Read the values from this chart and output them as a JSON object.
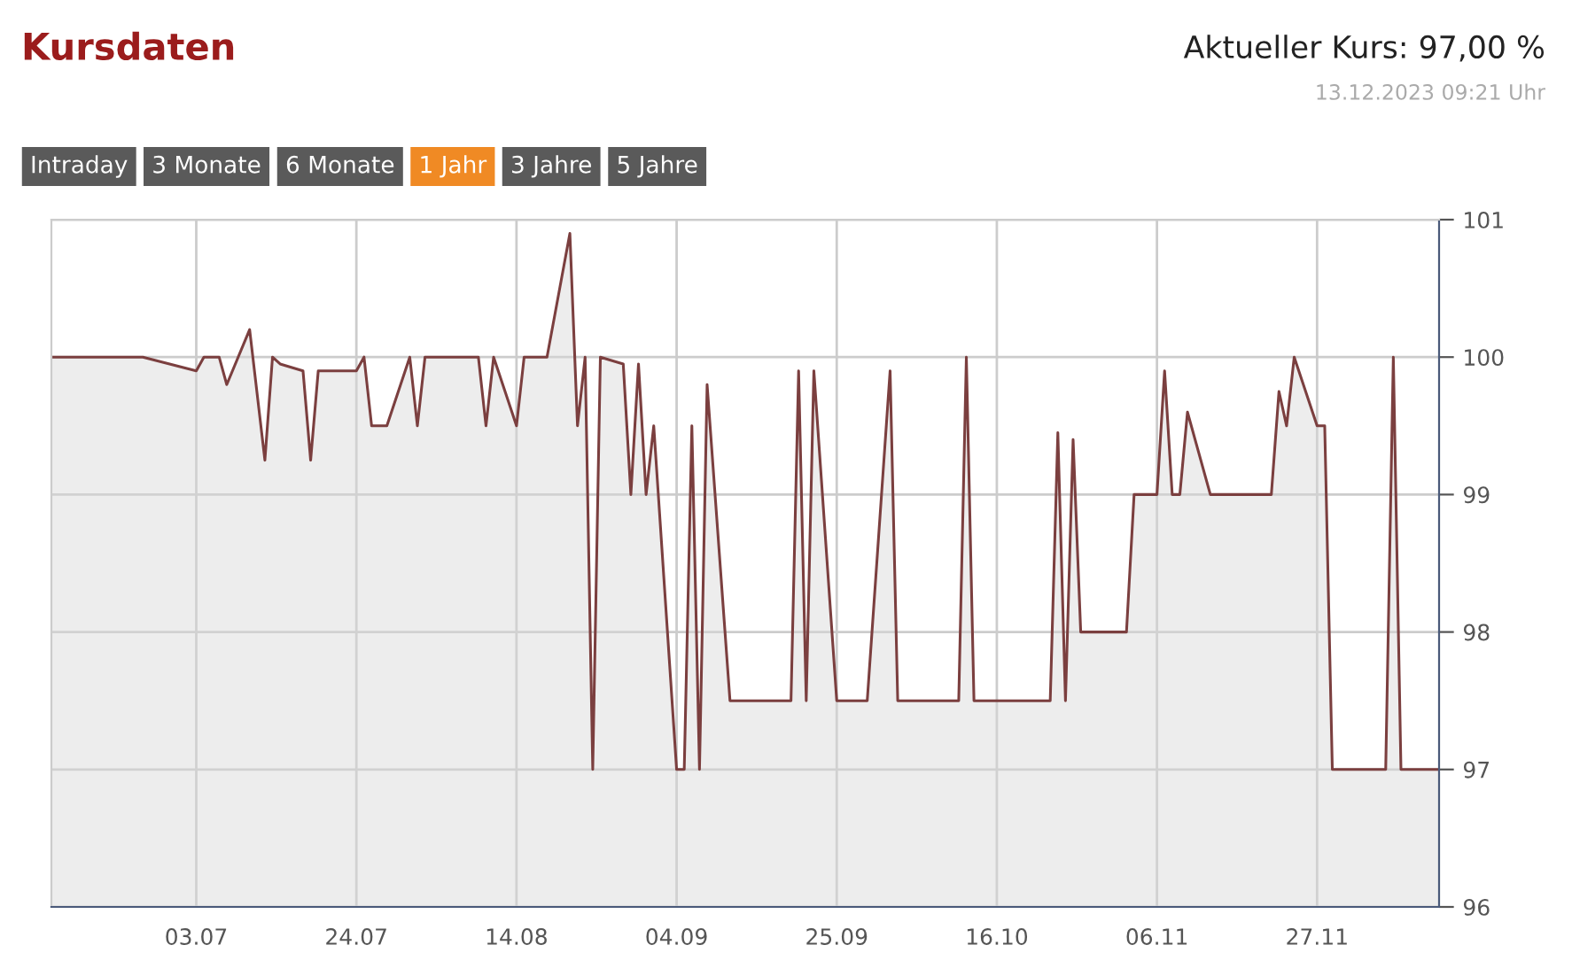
{
  "chart_data": {
    "type": "area",
    "title": "Kursdaten",
    "annotations": [
      "Aktueller Kurs: 97,00 %",
      "13.12.2023 09:21 Uhr",
      "Intraday",
      "3 Monate",
      "6 Monate",
      "1 Jahr",
      "3 Jahre",
      "5 Jahre"
    ],
    "x": [
      "2023-06-14",
      "2023-06-26",
      "2023-07-03",
      "2023-07-04",
      "2023-07-06",
      "2023-07-07",
      "2023-07-10",
      "2023-07-12",
      "2023-07-13",
      "2023-07-14",
      "2023-07-17",
      "2023-07-18",
      "2023-07-19",
      "2023-07-24",
      "2023-07-25",
      "2023-07-26",
      "2023-07-28",
      "2023-07-31",
      "2023-08-01",
      "2023-08-02",
      "2023-08-09",
      "2023-08-10",
      "2023-08-11",
      "2023-08-14",
      "2023-08-15",
      "2023-08-18",
      "2023-08-21",
      "2023-08-22",
      "2023-08-23",
      "2023-08-24",
      "2023-08-25",
      "2023-08-28",
      "2023-08-29",
      "2023-08-30",
      "2023-08-31",
      "2023-09-01",
      "2023-09-04",
      "2023-09-05",
      "2023-09-06",
      "2023-09-07",
      "2023-09-08",
      "2023-09-11",
      "2023-09-19",
      "2023-09-20",
      "2023-09-21",
      "2023-09-22",
      "2023-09-25",
      "2023-09-29",
      "2023-10-02",
      "2023-10-03",
      "2023-10-11",
      "2023-10-12",
      "2023-10-13",
      "2023-10-23",
      "2023-10-24",
      "2023-10-25",
      "2023-10-26",
      "2023-10-27",
      "2023-11-02",
      "2023-11-03",
      "2023-11-06",
      "2023-11-07",
      "2023-11-08",
      "2023-11-09",
      "2023-11-10",
      "2023-11-13",
      "2023-11-21",
      "2023-11-22",
      "2023-11-23",
      "2023-11-24",
      "2023-11-27",
      "2023-11-28",
      "2023-11-29",
      "2023-12-06",
      "2023-12-07",
      "2023-12-08",
      "2023-12-13"
    ],
    "series": [
      {
        "color": "#7b3f3f",
        "values": [
          100,
          100,
          99.9,
          100,
          100,
          99.8,
          100.2,
          99.25,
          100,
          99.95,
          99.9,
          99.25,
          99.9,
          99.9,
          100,
          99.5,
          99.5,
          100,
          99.5,
          100,
          100,
          99.5,
          100,
          99.5,
          100,
          100,
          100.9,
          99.5,
          100,
          97,
          100,
          99.95,
          99,
          99.95,
          99,
          99.5,
          97,
          97,
          99.5,
          97,
          99.8,
          97.5,
          97.5,
          99.9,
          97.5,
          99.9,
          97.5,
          97.5,
          99.9,
          97.5,
          97.5,
          100,
          97.5,
          97.5,
          99.45,
          97.5,
          99.4,
          98,
          98,
          99,
          99,
          99.9,
          99,
          99,
          99.6,
          99,
          99,
          99.75,
          99.5,
          100,
          99.5,
          99.5,
          97,
          97,
          100,
          97,
          97
        ]
      }
    ],
    "xlim": [
      "2023-06-14",
      "2023-12-13"
    ],
    "xticks": [
      {
        "value": "2023-07-03",
        "label": "03.07"
      },
      {
        "value": "2023-07-24",
        "label": "24.07"
      },
      {
        "value": "2023-08-14",
        "label": "14.08"
      },
      {
        "value": "2023-09-04",
        "label": "04.09"
      },
      {
        "value": "2023-09-25",
        "label": "25.09"
      },
      {
        "value": "2023-10-16",
        "label": "16.10"
      },
      {
        "value": "2023-11-06",
        "label": "06.11"
      },
      {
        "value": "2023-11-27",
        "label": "27.11"
      }
    ],
    "ylim": [
      96,
      101
    ],
    "yticks": [
      96,
      97,
      98,
      99,
      100,
      101
    ],
    "grid": true,
    "legend": false
  }
}
